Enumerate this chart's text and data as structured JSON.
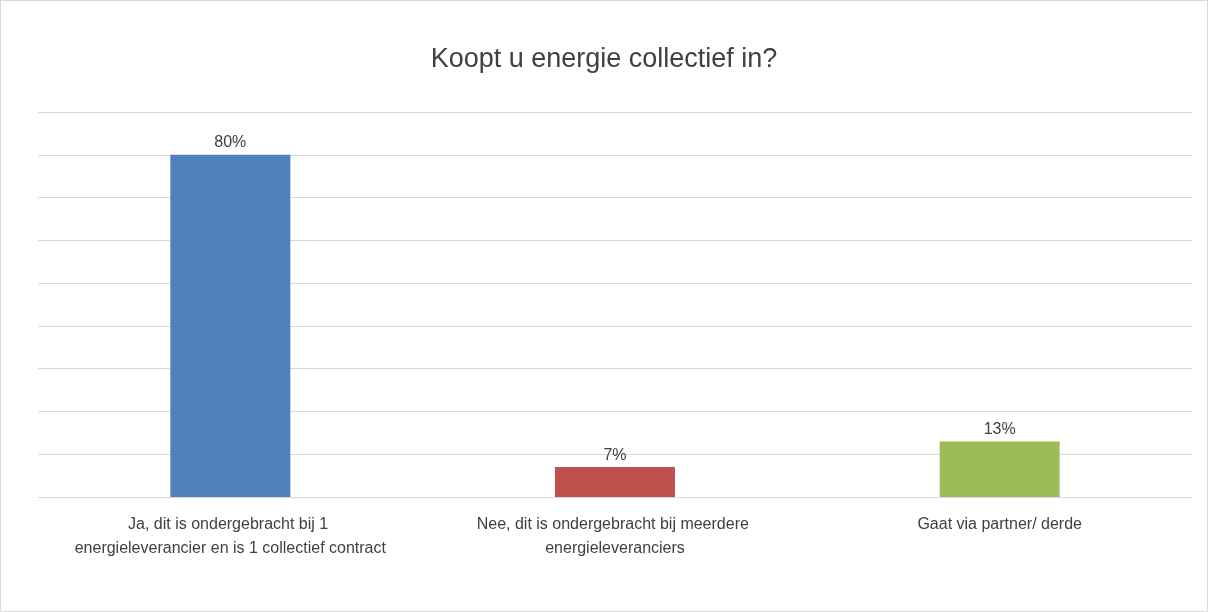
{
  "chart_data": {
    "type": "bar",
    "title": "Koopt u energie collectief in?",
    "categories": [
      "Ja, dit is ondergebracht bij 1 energieleverancier en is 1 collectief contract",
      "Nee, dit is ondergebracht bij meerdere energieleveranciers",
      "Gaat via partner/ derde"
    ],
    "values": [
      80,
      7,
      13
    ],
    "colors": [
      "#4f81bd",
      "#c0504d",
      "#9bbb59"
    ],
    "value_labels": [
      "80%",
      "7%",
      "13%"
    ],
    "ylim": [
      0,
      90
    ],
    "yticks": [
      {
        "value": 0,
        "label": null
      },
      {
        "value": 10,
        "label": null
      },
      {
        "value": 20,
        "label": null
      },
      {
        "value": 30,
        "label": null
      },
      {
        "value": 40,
        "label": null
      },
      {
        "value": 50,
        "label": null
      },
      {
        "value": 60,
        "label": null
      },
      {
        "value": 70,
        "label": null
      },
      {
        "value": 80,
        "label": null
      },
      {
        "value": 90,
        "label": null
      }
    ],
    "tick_labels": "x",
    "grid": "y"
  }
}
